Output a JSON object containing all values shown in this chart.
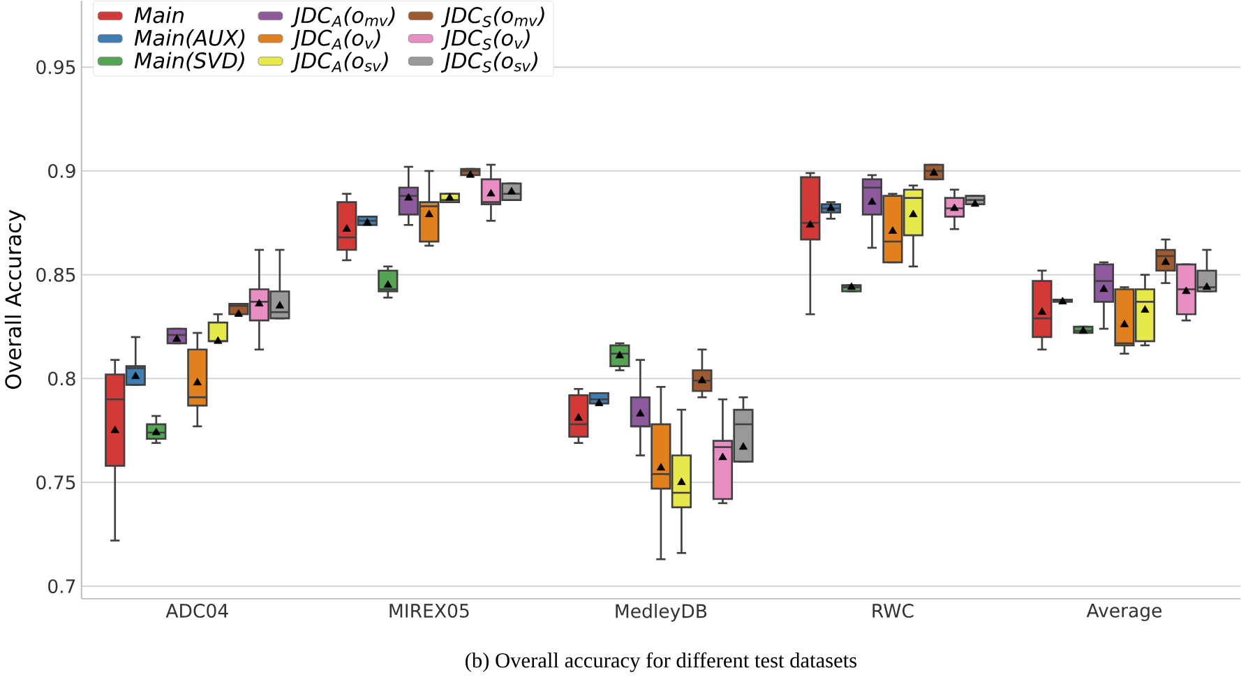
{
  "chart_data": {
    "type": "box",
    "ylabel": "Overall Accuracy",
    "categories": [
      "ADC04",
      "MIREX05",
      "MedleyDB",
      "RWC",
      "Average"
    ],
    "ylim": [
      0.694,
      0.982
    ],
    "yticks": [
      0.7,
      0.75,
      0.8,
      0.85,
      0.9,
      0.95
    ],
    "grid": "y",
    "legend": "top left",
    "annotations": [
      "(b) Overall accuracy for different test datasets"
    ],
    "series": [
      {
        "name": "Main",
        "color": "#d33a37",
        "boxes": [
          {
            "low": 0.722,
            "q1": 0.758,
            "median": 0.79,
            "q3": 0.802,
            "high": 0.809,
            "mean": 0.775
          },
          {
            "low": 0.857,
            "q1": 0.862,
            "median": 0.868,
            "q3": 0.885,
            "high": 0.889,
            "mean": 0.872
          },
          {
            "low": 0.769,
            "q1": 0.772,
            "median": 0.778,
            "q3": 0.792,
            "high": 0.795,
            "mean": 0.781
          },
          {
            "low": 0.831,
            "q1": 0.867,
            "median": 0.875,
            "q3": 0.897,
            "high": 0.899,
            "mean": 0.874
          },
          {
            "low": 0.814,
            "q1": 0.82,
            "median": 0.829,
            "q3": 0.847,
            "high": 0.852,
            "mean": 0.832
          }
        ]
      },
      {
        "name": "Main(AUX)",
        "color": "#3f7eb3",
        "boxes": [
          {
            "low": 0.797,
            "q1": 0.797,
            "median": 0.805,
            "q3": 0.806,
            "high": 0.82,
            "mean": 0.801
          },
          {
            "low": 0.874,
            "q1": 0.874,
            "median": 0.876,
            "q3": 0.878,
            "high": 0.878,
            "mean": 0.875
          },
          {
            "low": 0.788,
            "q1": 0.788,
            "median": 0.79,
            "q3": 0.793,
            "high": 0.793,
            "mean": 0.788
          },
          {
            "low": 0.877,
            "q1": 0.88,
            "median": 0.882,
            "q3": 0.884,
            "high": 0.885,
            "mean": 0.882
          },
          {
            "low": 0.837,
            "q1": 0.837,
            "median": 0.838,
            "q3": 0.838,
            "high": 0.838,
            "mean": 0.837
          }
        ]
      },
      {
        "name": "Main(SVD)",
        "color": "#55a453",
        "boxes": [
          {
            "low": 0.769,
            "q1": 0.771,
            "median": 0.774,
            "q3": 0.778,
            "high": 0.782,
            "mean": 0.774
          },
          {
            "low": 0.839,
            "q1": 0.842,
            "median": 0.843,
            "q3": 0.852,
            "high": 0.854,
            "mean": 0.845
          },
          {
            "low": 0.804,
            "q1": 0.806,
            "median": 0.812,
            "q3": 0.816,
            "high": 0.817,
            "mean": 0.811
          },
          {
            "low": 0.842,
            "q1": 0.842,
            "median": 0.844,
            "q3": 0.845,
            "high": 0.845,
            "mean": 0.844
          },
          {
            "low": 0.822,
            "q1": 0.822,
            "median": 0.823,
            "q3": 0.825,
            "high": 0.825,
            "mean": 0.823
          }
        ]
      },
      {
        "name": "JDC$_{A}$(o$_{mv}$)",
        "color": "#8e5a9e",
        "boxes": [
          {
            "low": 0.817,
            "q1": 0.817,
            "median": 0.821,
            "q3": 0.824,
            "high": 0.824,
            "mean": 0.819
          },
          {
            "low": 0.874,
            "q1": 0.879,
            "median": 0.888,
            "q3": 0.892,
            "high": 0.902,
            "mean": 0.887
          },
          {
            "low": 0.763,
            "q1": 0.777,
            "median": 0.777,
            "q3": 0.791,
            "high": 0.809,
            "mean": 0.783
          },
          {
            "low": 0.863,
            "q1": 0.879,
            "median": 0.892,
            "q3": 0.896,
            "high": 0.898,
            "mean": 0.885
          },
          {
            "low": 0.824,
            "q1": 0.837,
            "median": 0.847,
            "q3": 0.855,
            "high": 0.856,
            "mean": 0.843
          }
        ]
      },
      {
        "name": "JDC$_{A}$(o$_{v}$)",
        "color": "#e2801e",
        "boxes": [
          {
            "low": 0.777,
            "q1": 0.787,
            "median": 0.791,
            "q3": 0.814,
            "high": 0.822,
            "mean": 0.798
          },
          {
            "low": 0.864,
            "q1": 0.866,
            "median": 0.883,
            "q3": 0.885,
            "high": 0.9,
            "mean": 0.879
          },
          {
            "low": 0.713,
            "q1": 0.747,
            "median": 0.754,
            "q3": 0.778,
            "high": 0.796,
            "mean": 0.757
          },
          {
            "low": 0.856,
            "q1": 0.856,
            "median": 0.866,
            "q3": 0.888,
            "high": 0.889,
            "mean": 0.871
          },
          {
            "low": 0.812,
            "q1": 0.816,
            "median": 0.817,
            "q3": 0.843,
            "high": 0.844,
            "mean": 0.826
          }
        ]
      },
      {
        "name": "JDC$_{A}$(o$_{sv}$)",
        "color": "#e7e84a",
        "boxes": [
          {
            "low": 0.818,
            "q1": 0.818,
            "median": 0.818,
            "q3": 0.827,
            "high": 0.831,
            "mean": 0.818
          },
          {
            "low": 0.885,
            "q1": 0.885,
            "median": 0.886,
            "q3": 0.889,
            "high": 0.889,
            "mean": 0.887
          },
          {
            "low": 0.716,
            "q1": 0.738,
            "median": 0.745,
            "q3": 0.763,
            "high": 0.785,
            "mean": 0.75
          },
          {
            "low": 0.854,
            "q1": 0.869,
            "median": 0.887,
            "q3": 0.891,
            "high": 0.893,
            "mean": 0.879
          },
          {
            "low": 0.816,
            "q1": 0.818,
            "median": 0.837,
            "q3": 0.843,
            "high": 0.85,
            "mean": 0.833
          }
        ]
      },
      {
        "name": "JDC$_{S}$(o$_{mv}$)",
        "color": "#9f5a30",
        "boxes": [
          {
            "low": 0.831,
            "q1": 0.831,
            "median": 0.835,
            "q3": 0.836,
            "high": 0.836,
            "mean": 0.831
          },
          {
            "low": 0.898,
            "q1": 0.898,
            "median": 0.9,
            "q3": 0.901,
            "high": 0.901,
            "mean": 0.898
          },
          {
            "low": 0.791,
            "q1": 0.794,
            "median": 0.799,
            "q3": 0.804,
            "high": 0.814,
            "mean": 0.799
          },
          {
            "low": 0.896,
            "q1": 0.896,
            "median": 0.9,
            "q3": 0.903,
            "high": 0.903,
            "mean": 0.899
          },
          {
            "low": 0.846,
            "q1": 0.852,
            "median": 0.859,
            "q3": 0.862,
            "high": 0.867,
            "mean": 0.856
          }
        ]
      },
      {
        "name": "JDC$_{S}$(o$_{v}$)",
        "color": "#e88ec2",
        "boxes": [
          {
            "low": 0.814,
            "q1": 0.828,
            "median": 0.837,
            "q3": 0.843,
            "high": 0.862,
            "mean": 0.836
          },
          {
            "low": 0.876,
            "q1": 0.884,
            "median": 0.885,
            "q3": 0.896,
            "high": 0.903,
            "mean": 0.889
          },
          {
            "low": 0.74,
            "q1": 0.742,
            "median": 0.767,
            "q3": 0.77,
            "high": 0.79,
            "mean": 0.762
          },
          {
            "low": 0.872,
            "q1": 0.878,
            "median": 0.882,
            "q3": 0.887,
            "high": 0.891,
            "mean": 0.882
          },
          {
            "low": 0.828,
            "q1": 0.831,
            "median": 0.843,
            "q3": 0.855,
            "high": 0.855,
            "mean": 0.842
          }
        ]
      },
      {
        "name": "JDC$_{S}$(o$_{sv}$)",
        "color": "#999999",
        "boxes": [
          {
            "low": 0.829,
            "q1": 0.829,
            "median": 0.832,
            "q3": 0.842,
            "high": 0.862,
            "mean": 0.835
          },
          {
            "low": 0.886,
            "q1": 0.886,
            "median": 0.889,
            "q3": 0.894,
            "high": 0.894,
            "mean": 0.89
          },
          {
            "low": 0.76,
            "q1": 0.76,
            "median": 0.778,
            "q3": 0.785,
            "high": 0.791,
            "mean": 0.767
          },
          {
            "low": 0.884,
            "q1": 0.884,
            "median": 0.886,
            "q3": 0.888,
            "high": 0.888,
            "mean": 0.884
          },
          {
            "low": 0.842,
            "q1": 0.842,
            "median": 0.844,
            "q3": 0.852,
            "high": 0.862,
            "mean": 0.844
          }
        ]
      }
    ]
  }
}
